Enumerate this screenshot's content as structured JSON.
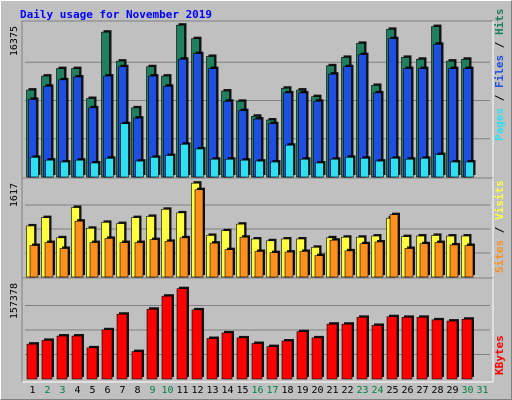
{
  "title": "Daily usage for November 2019",
  "colors": {
    "hits": "#1f7f5f",
    "files": "#1f4fdf",
    "pages": "#2fdfef",
    "visits": "#ffff3f",
    "sites": "#ff8f1f",
    "kbytes": "#ff0000",
    "weekend_label": "#008040",
    "weekday_label": "#000000"
  },
  "chart_data": [
    {
      "type": "bar",
      "panel": "hits-files-pages",
      "max_label": "16375",
      "ylim": [
        0,
        16375
      ],
      "legend": [
        "Pages",
        "Files",
        "Hits"
      ],
      "categories": [
        "1",
        "2",
        "3",
        "4",
        "5",
        "6",
        "7",
        "8",
        "9",
        "10",
        "11",
        "12",
        "13",
        "14",
        "15",
        "16",
        "17",
        "18",
        "19",
        "20",
        "21",
        "22",
        "23",
        "24",
        "25",
        "26",
        "27",
        "28",
        "29",
        "30",
        "31"
      ],
      "weekend_days": [
        "2",
        "3",
        "9",
        "10",
        "16",
        "17",
        "23",
        "24",
        "30",
        "31"
      ],
      "series": [
        {
          "name": "Hits",
          "values": [
            9300,
            10800,
            11600,
            11600,
            8400,
            15500,
            12400,
            7400,
            11800,
            10800,
            16250,
            14800,
            12900,
            9200,
            8100,
            6500,
            6100,
            9500,
            9300,
            8600,
            11900,
            12800,
            14300,
            9800,
            15800,
            12800,
            12600,
            16100,
            12400,
            12600,
            0
          ]
        },
        {
          "name": "Files",
          "values": [
            8300,
            9700,
            10400,
            10700,
            7400,
            10800,
            11800,
            6300,
            10800,
            9700,
            12600,
            13200,
            11600,
            8100,
            7100,
            6200,
            5700,
            9000,
            9000,
            8100,
            11000,
            11800,
            13100,
            9000,
            14800,
            11600,
            11600,
            14200,
            11600,
            11600,
            0
          ]
        },
        {
          "name": "Pages",
          "values": [
            2100,
            1800,
            1600,
            1800,
            1500,
            2000,
            5700,
            1700,
            2100,
            2300,
            3500,
            3000,
            1900,
            1900,
            1800,
            1700,
            1600,
            3400,
            1900,
            1500,
            1900,
            2100,
            2000,
            1700,
            2000,
            1900,
            2000,
            2400,
            1600,
            1600,
            0
          ]
        }
      ]
    },
    {
      "type": "bar",
      "panel": "visits-sites",
      "max_label": "1617",
      "ylim": [
        0,
        1617
      ],
      "legend": [
        "Sites",
        "Visits"
      ],
      "categories": [
        "1",
        "2",
        "3",
        "4",
        "5",
        "6",
        "7",
        "8",
        "9",
        "10",
        "11",
        "12",
        "13",
        "14",
        "15",
        "16",
        "17",
        "18",
        "19",
        "20",
        "21",
        "22",
        "23",
        "24",
        "25",
        "26",
        "27",
        "28",
        "29",
        "30",
        "31"
      ],
      "series": [
        {
          "name": "Visits",
          "values": [
            860,
            1000,
            660,
            1170,
            820,
            920,
            900,
            1000,
            1020,
            1140,
            1080,
            1580,
            700,
            780,
            890,
            640,
            610,
            640,
            640,
            500,
            660,
            670,
            670,
            690,
            990,
            680,
            690,
            700,
            690,
            690,
            0
          ]
        },
        {
          "name": "Sites",
          "values": [
            530,
            580,
            480,
            940,
            580,
            650,
            580,
            580,
            630,
            600,
            660,
            1470,
            570,
            460,
            670,
            430,
            410,
            420,
            430,
            360,
            620,
            440,
            560,
            590,
            1050,
            480,
            560,
            580,
            540,
            530,
            0
          ]
        }
      ]
    },
    {
      "type": "bar",
      "panel": "kbytes",
      "max_label": "157378",
      "ylim": [
        0,
        157378
      ],
      "legend": [
        "KBytes"
      ],
      "categories": [
        "1",
        "2",
        "3",
        "4",
        "5",
        "6",
        "7",
        "8",
        "9",
        "10",
        "11",
        "12",
        "13",
        "14",
        "15",
        "16",
        "17",
        "18",
        "19",
        "20",
        "21",
        "22",
        "23",
        "24",
        "25",
        "26",
        "27",
        "28",
        "29",
        "30",
        "31"
      ],
      "series": [
        {
          "name": "KBytes",
          "values": [
            56000,
            62000,
            69000,
            69000,
            50000,
            79000,
            104000,
            44000,
            112000,
            133000,
            145000,
            111000,
            65000,
            74000,
            66000,
            57000,
            52000,
            61000,
            76000,
            66000,
            88000,
            88000,
            99000,
            86000,
            100000,
            99000,
            99000,
            95000,
            93000,
            96000,
            0
          ]
        }
      ]
    }
  ]
}
